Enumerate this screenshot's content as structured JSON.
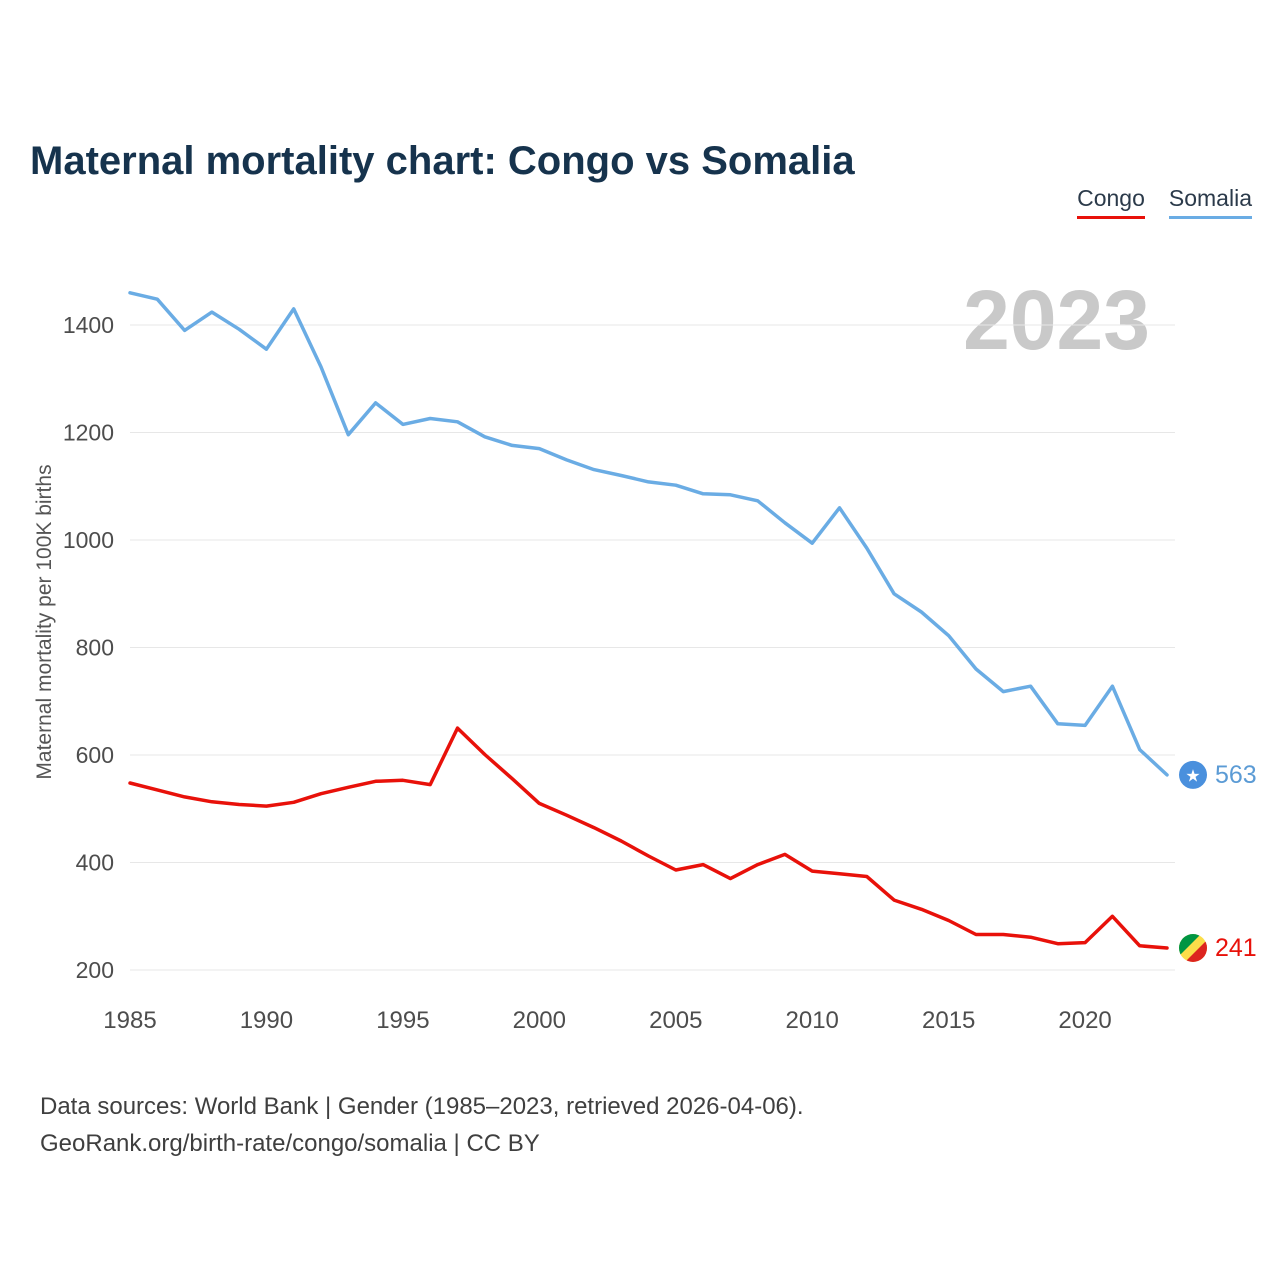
{
  "page": {
    "title": "Maternal mortality chart: Congo vs Somalia",
    "watermark": "2023",
    "footer_line1": "Data sources: World Bank | Gender (1985–2023, retrieved 2026-04-06).",
    "footer_line2": "GeoRank.org/birth-rate/congo/somalia | CC BY"
  },
  "legend": [
    {
      "label": "Congo",
      "color": "#e8110a"
    },
    {
      "label": "Somalia",
      "color": "#6aace4"
    }
  ],
  "chart_data": {
    "type": "line",
    "title": "Maternal mortality chart: Congo vs Somalia",
    "xlabel": "",
    "ylabel": "Maternal mortality per 100K births",
    "ylim": [
      200,
      1400
    ],
    "yticks": [
      200,
      400,
      600,
      800,
      1000,
      1200,
      1400
    ],
    "xticks": [
      1985,
      1990,
      1995,
      2000,
      2005,
      2010,
      2015,
      2020
    ],
    "grid": "horizontal",
    "legend_position": "top-right",
    "x": [
      1985,
      1986,
      1987,
      1988,
      1989,
      1990,
      1991,
      1992,
      1993,
      1994,
      1995,
      1996,
      1997,
      1998,
      1999,
      2000,
      2001,
      2002,
      2003,
      2004,
      2005,
      2006,
      2007,
      2008,
      2009,
      2010,
      2011,
      2012,
      2013,
      2014,
      2015,
      2016,
      2017,
      2018,
      2019,
      2020,
      2021,
      2022,
      2023
    ],
    "series": [
      {
        "name": "Somalia",
        "color": "#6aace4",
        "label_color": "#5b9bd5",
        "flag": "somalia",
        "end_label": "563",
        "values": [
          1460,
          1448,
          1390,
          1424,
          1392,
          1355,
          1430,
          1322,
          1196,
          1255,
          1215,
          1226,
          1220,
          1192,
          1176,
          1170,
          1149,
          1131,
          1120,
          1108,
          1102,
          1086,
          1084,
          1073,
          1032,
          994,
          1060,
          985,
          900,
          866,
          822,
          760,
          718,
          728,
          658,
          655,
          728,
          610,
          563
        ]
      },
      {
        "name": "Congo",
        "color": "#e8110a",
        "label_color": "#e8110a",
        "flag": "congo",
        "end_label": "241",
        "values": [
          548,
          535,
          522,
          513,
          508,
          505,
          512,
          528,
          540,
          551,
          553,
          545,
          650,
          601,
          556,
          510,
          488,
          465,
          440,
          412,
          386,
          396,
          370,
          396,
          415,
          384,
          379,
          374,
          330,
          313,
          292,
          266,
          266,
          261,
          249,
          251,
          300,
          245,
          241
        ]
      }
    ]
  }
}
